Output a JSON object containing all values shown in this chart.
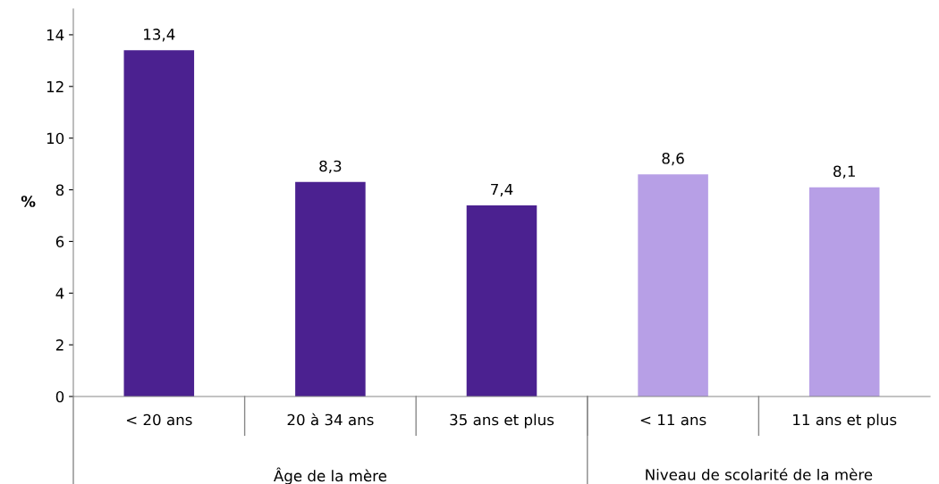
{
  "chart_data": {
    "type": "bar",
    "ylabel": "%",
    "categories": [
      "< 20 ans",
      "20 à 34 ans",
      "35 ans et plus",
      "< 11 ans",
      "11 ans et plus"
    ],
    "values": [
      13.4,
      8.3,
      7.4,
      8.6,
      8.1
    ],
    "value_labels": [
      "13,4",
      "8,3",
      "7,4",
      "8,6",
      "8,1"
    ],
    "colors": [
      "#4b2190",
      "#4b2190",
      "#4b2190",
      "#b79fe6",
      "#b79fe6"
    ],
    "annotations": [
      "Âge de la mère",
      "Niveau de scolarité de la mère"
    ],
    "ylim": [
      0,
      15
    ],
    "yticks": [
      0,
      2,
      4,
      6,
      8,
      10,
      12,
      14
    ],
    "grid": false,
    "legend": false
  }
}
